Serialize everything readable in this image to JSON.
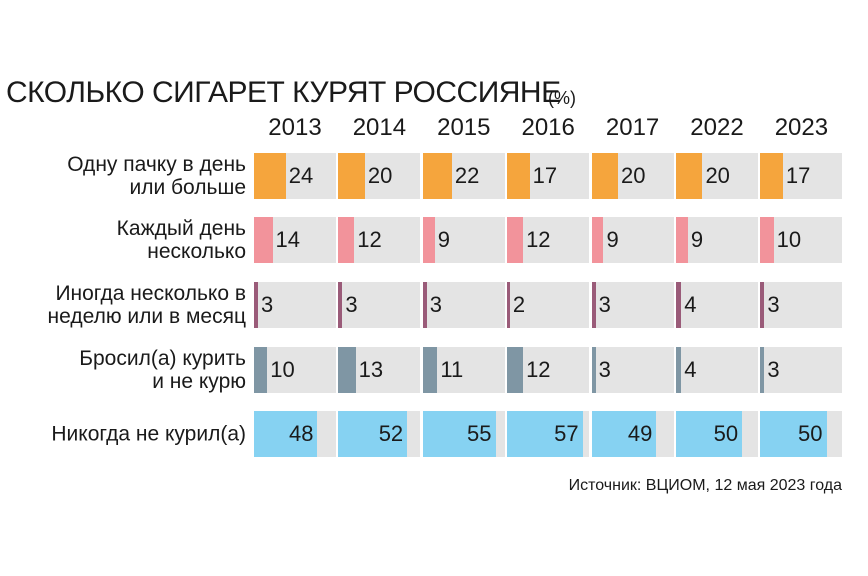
{
  "chart_data": {
    "type": "bar",
    "title": "СКОЛЬКО СИГАРЕТ КУРЯТ РОССИЯНЕ",
    "subtitle": "(%)",
    "categories": [
      "Одну пачку в день\nили больше",
      "Каждый день\nнесколько",
      "Иногда несколько в\nнеделю или в месяц",
      "Бросил(а) курить\nи не курю",
      "Никогда не курил(а)"
    ],
    "colors": [
      "#f5a53d",
      "#f2939b",
      "#9a5b79",
      "#7f96a4",
      "#86d2f2"
    ],
    "series": [
      {
        "name": "2013",
        "values": [
          24,
          14,
          3,
          10,
          48
        ]
      },
      {
        "name": "2014",
        "values": [
          20,
          12,
          3,
          13,
          52
        ]
      },
      {
        "name": "2015",
        "values": [
          22,
          9,
          3,
          11,
          55
        ]
      },
      {
        "name": "2016",
        "values": [
          17,
          12,
          2,
          12,
          57
        ]
      },
      {
        "name": "2017",
        "values": [
          20,
          9,
          3,
          3,
          49
        ]
      },
      {
        "name": "2022",
        "values": [
          20,
          9,
          4,
          4,
          50
        ]
      },
      {
        "name": "2023",
        "values": [
          17,
          10,
          3,
          3,
          50
        ]
      }
    ],
    "xlim": [
      0,
      62
    ],
    "source": "Источник: ВЦИОМ, 12 мая 2023 года"
  }
}
